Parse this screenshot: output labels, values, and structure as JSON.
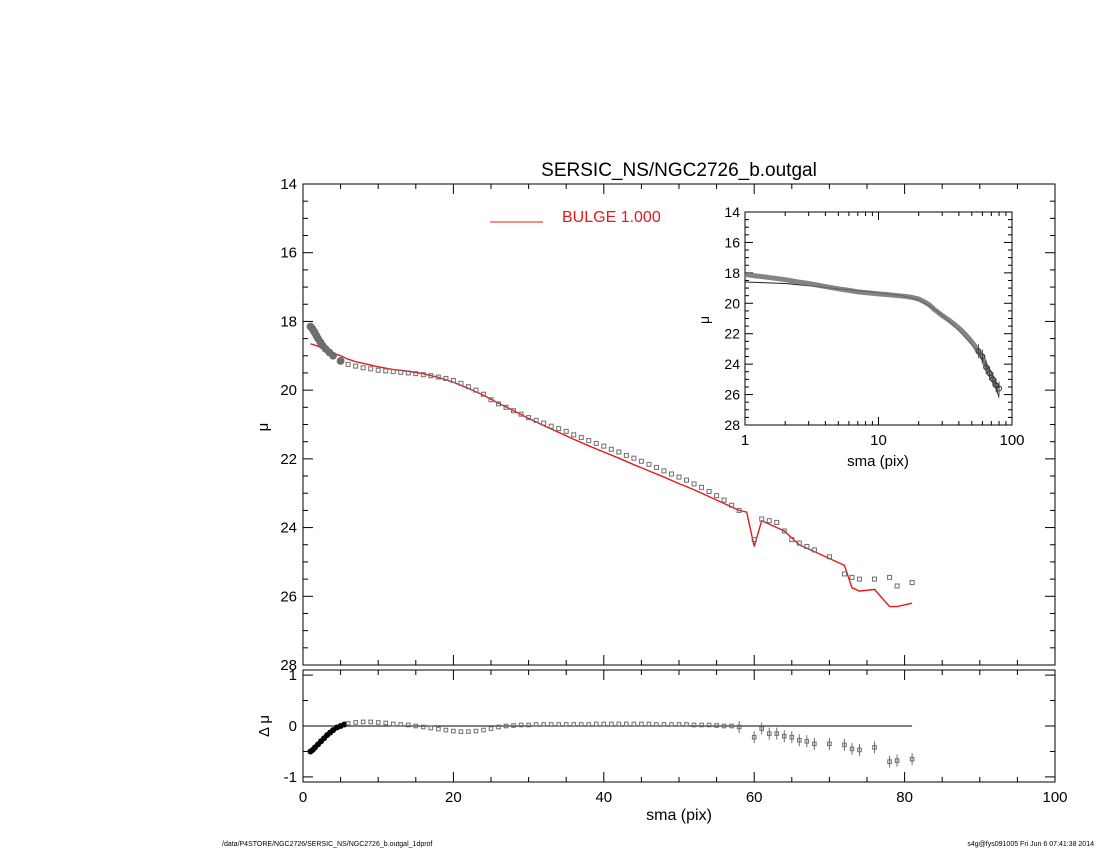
{
  "chart_data": [
    {
      "type": "scatter",
      "title": "SERSIC_NS/NGC2726_b.outgal",
      "xlabel": "",
      "ylabel": "μ",
      "xlim": [
        0,
        100
      ],
      "ylim": [
        28,
        14
      ],
      "x_ticks": [
        0,
        20,
        40,
        60,
        80,
        100
      ],
      "y_ticks": [
        14,
        16,
        18,
        20,
        22,
        24,
        26,
        28
      ],
      "legend": {
        "label": "BULGE  1.000",
        "position": "top-center",
        "color": "#e31a1c"
      },
      "data_series": {
        "x": [
          1.0,
          1.2,
          1.4,
          1.6,
          1.8,
          2.0,
          2.3,
          2.6,
          3.0,
          3.5,
          4,
          5,
          6,
          7,
          8,
          9,
          10,
          11,
          12,
          13,
          14,
          15,
          16,
          17,
          18,
          19,
          20,
          21,
          22,
          23,
          24,
          25,
          26,
          27,
          28,
          29,
          30,
          31,
          32,
          33,
          34,
          35,
          36,
          37,
          38,
          39,
          40,
          41,
          42,
          43,
          44,
          45,
          46,
          47,
          48,
          49,
          50,
          51,
          52,
          53,
          54,
          55,
          56,
          57,
          58,
          60,
          61,
          62,
          63,
          64,
          65,
          66,
          67,
          68,
          70,
          72,
          73,
          74,
          76,
          78,
          79,
          81
        ],
        "y": [
          18.15,
          18.2,
          18.27,
          18.34,
          18.42,
          18.5,
          18.6,
          18.7,
          18.8,
          18.9,
          19.0,
          19.15,
          19.25,
          19.3,
          19.35,
          19.38,
          19.42,
          19.44,
          19.46,
          19.48,
          19.5,
          19.52,
          19.55,
          19.58,
          19.62,
          19.66,
          19.72,
          19.8,
          19.9,
          20.0,
          20.12,
          20.28,
          20.4,
          20.5,
          20.6,
          20.7,
          20.8,
          20.88,
          20.96,
          21.05,
          21.12,
          21.2,
          21.3,
          21.38,
          21.47,
          21.55,
          21.63,
          21.72,
          21.8,
          21.9,
          21.98,
          22.07,
          22.16,
          22.25,
          22.35,
          22.44,
          22.53,
          22.62,
          22.73,
          22.83,
          22.95,
          23.07,
          23.2,
          23.35,
          23.5,
          24.35,
          23.75,
          23.8,
          23.85,
          24.1,
          24.35,
          24.45,
          24.55,
          24.65,
          24.85,
          25.35,
          25.45,
          25.5,
          25.5,
          25.45,
          25.7,
          25.6
        ]
      },
      "model_series": {
        "name": "BULGE  1.000",
        "x": [
          1,
          2,
          3,
          4,
          5,
          6,
          7,
          8,
          9,
          10,
          12,
          14,
          16,
          18,
          20,
          22,
          24,
          26,
          28,
          30,
          32,
          34,
          36,
          38,
          40,
          42,
          44,
          46,
          48,
          50,
          52,
          54,
          56,
          58,
          59,
          60,
          61,
          62,
          64,
          66,
          68,
          70,
          72,
          73,
          74,
          76,
          78,
          79,
          81
        ],
        "y": [
          18.65,
          18.72,
          18.8,
          18.92,
          19.0,
          19.1,
          19.17,
          19.22,
          19.27,
          19.32,
          19.4,
          19.45,
          19.52,
          19.63,
          19.77,
          19.95,
          20.15,
          20.38,
          20.6,
          20.82,
          21.03,
          21.23,
          21.43,
          21.62,
          21.8,
          21.98,
          22.17,
          22.35,
          22.53,
          22.72,
          22.9,
          23.1,
          23.3,
          23.5,
          23.55,
          24.55,
          23.8,
          23.9,
          24.1,
          24.5,
          24.7,
          24.9,
          25.1,
          25.75,
          25.85,
          25.8,
          26.3,
          26.3,
          26.2
        ]
      }
    },
    {
      "type": "scatter",
      "xlabel": "sma (pix)",
      "ylabel": "Δ μ",
      "xlim": [
        0,
        100
      ],
      "ylim": [
        -1.1,
        1.1
      ],
      "x_ticks": [
        0,
        20,
        40,
        60,
        80,
        100
      ],
      "y_ticks": [
        1,
        0,
        -1
      ],
      "zero_line": {
        "from": 0,
        "to": 81
      },
      "residual_series": {
        "x": [
          1.0,
          1.3,
          1.6,
          2.0,
          2.4,
          2.8,
          3.2,
          3.6,
          4.0,
          4.5,
          5.0,
          5.5,
          6,
          7,
          8,
          9,
          10,
          11,
          12,
          13,
          14,
          15,
          16,
          17,
          18,
          19,
          20,
          21,
          22,
          23,
          24,
          25,
          26,
          27,
          28,
          29,
          30,
          31,
          32,
          33,
          34,
          35,
          36,
          37,
          38,
          39,
          40,
          41,
          42,
          43,
          44,
          45,
          46,
          47,
          48,
          49,
          50,
          51,
          52,
          53,
          54,
          55,
          56,
          57,
          58,
          60,
          61,
          62,
          63,
          64,
          65,
          66,
          67,
          68,
          70,
          72,
          73,
          74,
          76,
          78,
          79,
          81
        ],
        "y": [
          -0.5,
          -0.47,
          -0.42,
          -0.36,
          -0.3,
          -0.24,
          -0.18,
          -0.13,
          -0.08,
          -0.03,
          0.0,
          0.03,
          0.05,
          0.07,
          0.08,
          0.08,
          0.07,
          0.06,
          0.04,
          0.03,
          0.02,
          0.0,
          -0.02,
          -0.04,
          -0.06,
          -0.08,
          -0.1,
          -0.11,
          -0.11,
          -0.1,
          -0.08,
          -0.05,
          -0.02,
          0.0,
          0.01,
          0.02,
          0.02,
          0.03,
          0.03,
          0.03,
          0.03,
          0.03,
          0.03,
          0.03,
          0.03,
          0.04,
          0.04,
          0.04,
          0.04,
          0.04,
          0.04,
          0.04,
          0.04,
          0.03,
          0.03,
          0.03,
          0.03,
          0.03,
          0.02,
          0.02,
          0.02,
          0.01,
          0.0,
          0.0,
          -0.02,
          -0.22,
          -0.05,
          -0.15,
          -0.15,
          -0.2,
          -0.22,
          -0.28,
          -0.3,
          -0.35,
          -0.35,
          -0.37,
          -0.45,
          -0.47,
          -0.42,
          -0.7,
          -0.68,
          -0.65
        ]
      }
    },
    {
      "type": "scatter",
      "xlabel": "sma (pix)",
      "ylabel": "μ",
      "xscale": "log",
      "xlim": [
        1,
        100
      ],
      "ylim": [
        28,
        14
      ],
      "x_ticks": [
        1,
        10,
        100
      ],
      "y_ticks": [
        14,
        16,
        18,
        20,
        22,
        24,
        26,
        28
      ],
      "data_series": {
        "x": [
          1.0,
          1.2,
          1.5,
          2,
          2.5,
          3,
          4,
          5,
          6,
          7,
          8,
          10,
          12,
          14,
          16,
          18,
          20,
          22,
          24,
          26,
          28,
          30,
          33,
          36,
          40,
          44,
          48,
          52,
          56,
          60,
          64,
          68,
          72,
          76,
          80
        ],
        "y": [
          18.1,
          18.2,
          18.3,
          18.45,
          18.6,
          18.7,
          18.9,
          19.05,
          19.15,
          19.25,
          19.3,
          19.38,
          19.44,
          19.5,
          19.55,
          19.62,
          19.72,
          19.9,
          20.1,
          20.38,
          20.6,
          20.8,
          21.05,
          21.3,
          21.63,
          21.98,
          22.35,
          22.73,
          23.15,
          23.5,
          24.2,
          24.6,
          25.0,
          25.4,
          25.6
        ]
      },
      "model_series": {
        "x": [
          1.0,
          2,
          3,
          5,
          8,
          10,
          15,
          20,
          25,
          30,
          40,
          50,
          60,
          70,
          80
        ],
        "y": [
          18.6,
          18.7,
          18.85,
          19.05,
          19.22,
          19.32,
          19.5,
          19.77,
          20.25,
          20.8,
          21.8,
          22.72,
          23.7,
          24.5,
          26.2
        ]
      }
    }
  ],
  "footer": {
    "left": "/data/P4STORE/NGC2726/SERSIC_NS/NGC2726_b.outgal_1dprof",
    "right": "s4g@fys091005  Fri Jun  6 07:41:38 2014"
  },
  "colors": {
    "data": "#6e6e6e",
    "model": "#e31a1c",
    "axes": "#000000"
  }
}
